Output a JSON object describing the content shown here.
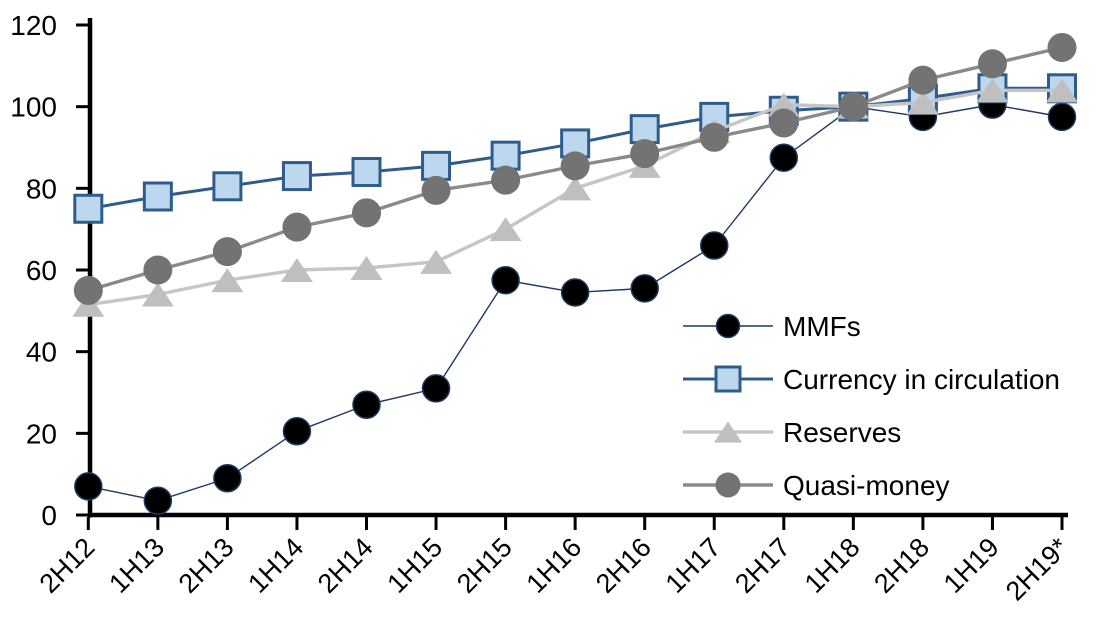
{
  "chart_data": {
    "type": "line",
    "title": "",
    "xlabel": "",
    "ylabel": "",
    "categories": [
      "2H12",
      "1H13",
      "2H13",
      "1H14",
      "2H14",
      "1H15",
      "2H15",
      "1H16",
      "2H16",
      "1H17",
      "2H17",
      "1H18",
      "2H18",
      "1H19",
      "2H19*"
    ],
    "series": [
      {
        "name": "MMFs",
        "marker": "circle",
        "marker_fill": "#000000",
        "marker_stroke": "#1F3864",
        "line_color": "#1F3864",
        "values": [
          7,
          3.5,
          9,
          20.5,
          27,
          31,
          57.5,
          54.5,
          55.5,
          66,
          87.5,
          100,
          97.5,
          100.5,
          97.5
        ]
      },
      {
        "name": "Currency in circulation",
        "marker": "square",
        "marker_fill": "#BDD7EE",
        "marker_stroke": "#2E5D8C",
        "line_color": "#2E5D8C",
        "values": [
          75,
          78,
          80.5,
          83,
          84,
          85.5,
          88,
          91,
          94.5,
          97.5,
          99,
          100,
          102,
          104.5,
          104.5
        ]
      },
      {
        "name": "Reserves",
        "marker": "triangle",
        "marker_fill": "#BFBFBF",
        "marker_stroke": "none",
        "line_color": "#C6C6C6",
        "values": [
          51.5,
          54,
          57.5,
          60,
          60.5,
          62,
          70,
          80,
          85.5,
          94,
          100.5,
          100,
          101,
          104,
          104
        ]
      },
      {
        "name": "Quasi-money",
        "marker": "circle",
        "marker_fill": "#737373",
        "marker_stroke": "none",
        "line_color": "#8A8A8A",
        "values": [
          55,
          60,
          64.5,
          70.5,
          74,
          79.5,
          82,
          85.5,
          88.5,
          92.5,
          96,
          100,
          106.5,
          110.5,
          114.5
        ]
      }
    ],
    "ylim": [
      0,
      120
    ],
    "yticks": [
      0,
      20,
      40,
      60,
      80,
      100,
      120
    ],
    "grid": false,
    "legend_position": "inside-right",
    "axis_color": "#000000",
    "background_color": "#FFFFFF"
  }
}
